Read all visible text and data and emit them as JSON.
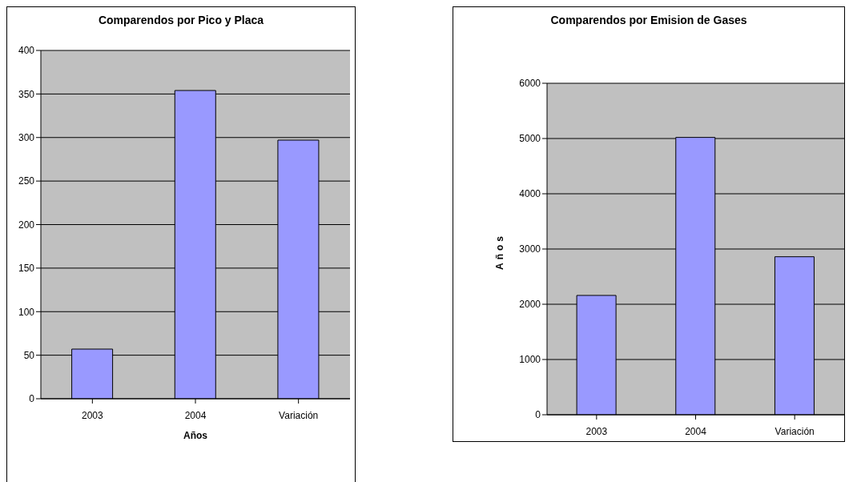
{
  "chart_data": [
    {
      "type": "bar",
      "title": "Comparendos por Pico y Placa",
      "xlabel": "Años",
      "categories": [
        "2003",
        "2004",
        "Variación"
      ],
      "values": [
        57,
        354,
        297
      ],
      "color": "#9999ff",
      "ylim": [
        0,
        400
      ],
      "yticks": [
        0,
        50,
        100,
        150,
        200,
        250,
        300,
        350,
        400
      ],
      "grid": "y"
    },
    {
      "type": "bar",
      "title": "Comparendos por Emision de Gases",
      "ylabel": "Años",
      "categories": [
        "2003",
        "2004",
        "Variación"
      ],
      "values": [
        2160,
        5020,
        2860
      ],
      "color": "#9999ff",
      "ylim": [
        0,
        6000
      ],
      "yticks": [
        0,
        1000,
        2000,
        3000,
        4000,
        5000,
        6000
      ],
      "grid": "y"
    }
  ]
}
